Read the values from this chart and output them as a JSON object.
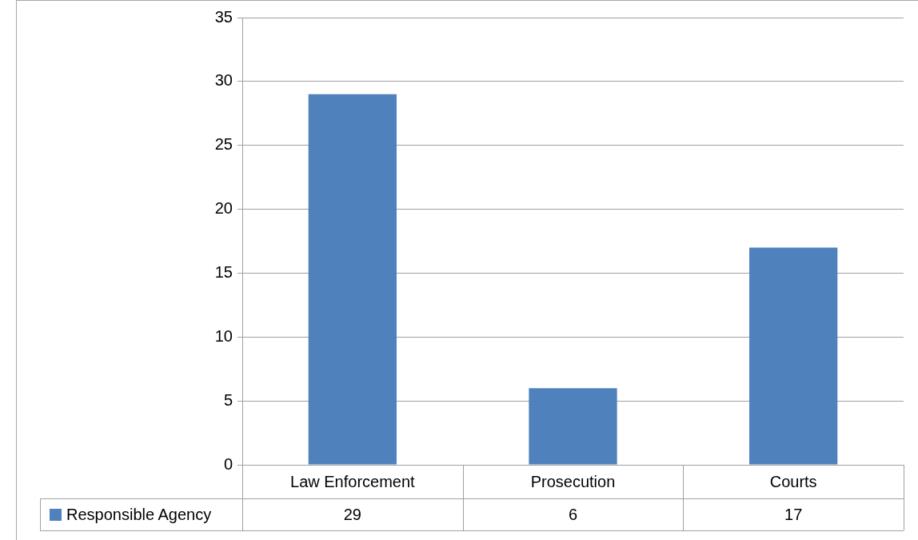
{
  "chart_data": {
    "type": "bar",
    "categories": [
      "Law Enforcement",
      "Prosecution",
      "Courts"
    ],
    "series": [
      {
        "name": "Responsible Agency",
        "color": "#4f81bd",
        "values": [
          29,
          6,
          17
        ]
      }
    ],
    "ylim": [
      0,
      35
    ],
    "yticks": [
      0,
      5,
      10,
      15,
      20,
      25,
      30,
      35
    ],
    "grid": "y",
    "legend": "bottom",
    "data_labels": true
  }
}
